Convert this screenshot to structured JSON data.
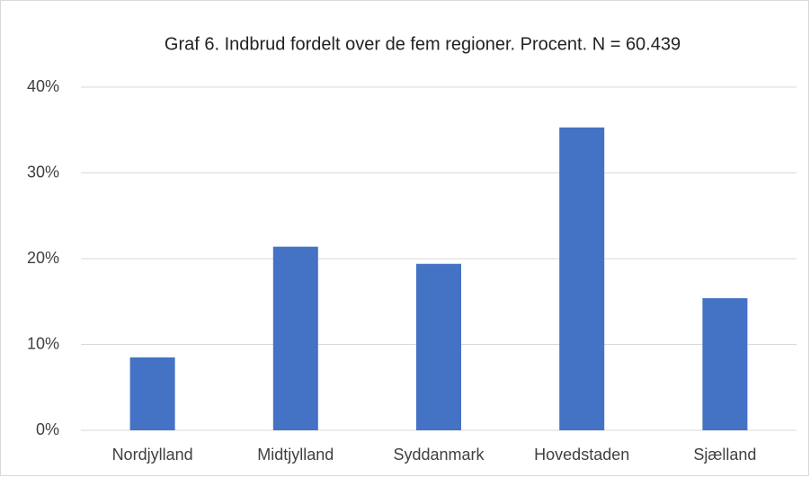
{
  "chart_data": {
    "type": "bar",
    "title": "Graf 6. Indbrud fordelt over de fem regioner. Procent. N = 60.439",
    "categories": [
      "Nordjylland",
      "Midtjylland",
      "Syddanmark",
      "Hovedstaden",
      "Sjælland"
    ],
    "values": [
      8.5,
      21.4,
      19.4,
      35.3,
      15.4
    ],
    "color": "#4472c4",
    "ylim": [
      0,
      40
    ],
    "yticks": [
      {
        "value": 0,
        "label": "0%"
      },
      {
        "value": 10,
        "label": "10%"
      },
      {
        "value": 20,
        "label": "20%"
      },
      {
        "value": 30,
        "label": "30%"
      },
      {
        "value": 40,
        "label": "40%"
      }
    ],
    "grid": true
  }
}
